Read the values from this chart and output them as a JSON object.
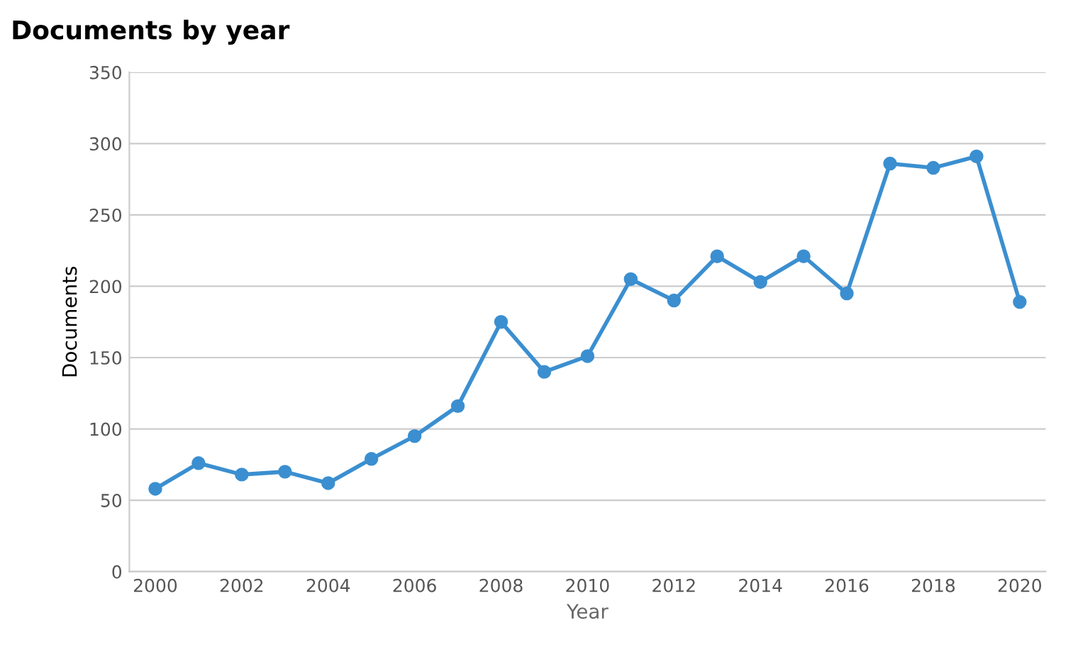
{
  "chart_data": {
    "type": "line",
    "title": "Documents by year",
    "xlabel": "Year",
    "ylabel": "Documents",
    "x": [
      2000,
      2001,
      2002,
      2003,
      2004,
      2005,
      2006,
      2007,
      2008,
      2009,
      2010,
      2011,
      2012,
      2013,
      2014,
      2015,
      2016,
      2017,
      2018,
      2019,
      2020
    ],
    "series": [
      {
        "color": "#3b8fd0",
        "values": [
          58,
          76,
          68,
          70,
          62,
          79,
          95,
          116,
          175,
          140,
          151,
          205,
          190,
          221,
          203,
          221,
          195,
          286,
          283,
          291,
          189
        ]
      }
    ],
    "xlim": [
      1999.4,
      2020.6
    ],
    "xticks": [
      2000,
      2002,
      2004,
      2006,
      2008,
      2010,
      2012,
      2014,
      2016,
      2018,
      2020
    ],
    "ylim": [
      0,
      350
    ],
    "yticks": [
      0,
      50,
      100,
      150,
      200,
      250,
      300,
      350
    ],
    "grid": "y",
    "marker": "circle",
    "line_style": "solid",
    "legend": false
  }
}
